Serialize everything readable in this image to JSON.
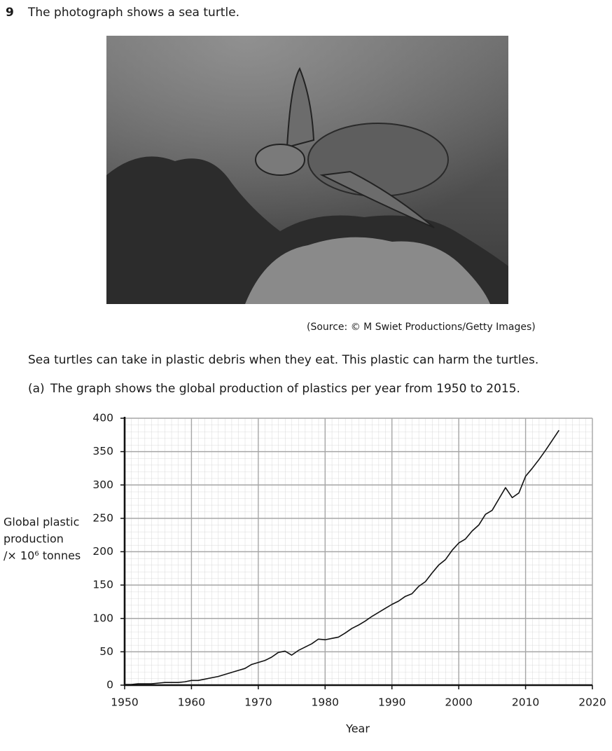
{
  "question": {
    "number": "9",
    "text": "The photograph shows a sea turtle."
  },
  "photo": {
    "source": "(Source: © M Swiet Productions/Getty Images)"
  },
  "paragraph": "Sea turtles can take in plastic debris when they eat. This plastic can harm the turtles.",
  "part": {
    "label": "(a)",
    "text": "The graph shows the global production of plastics per year from 1950 to 2015."
  },
  "chart_data": {
    "type": "line",
    "xlabel": "Year",
    "ylabel": [
      "Global plastic",
      "production",
      "/× 10⁶ tonnes"
    ],
    "x": [
      1950,
      1951,
      1952,
      1953,
      1954,
      1955,
      1956,
      1957,
      1958,
      1959,
      1960,
      1961,
      1962,
      1963,
      1964,
      1965,
      1966,
      1967,
      1968,
      1969,
      1970,
      1971,
      1972,
      1973,
      1974,
      1975,
      1976,
      1977,
      1978,
      1979,
      1980,
      1981,
      1982,
      1983,
      1984,
      1985,
      1986,
      1987,
      1988,
      1989,
      1990,
      1991,
      1992,
      1993,
      1994,
      1995,
      1996,
      1997,
      1998,
      1999,
      2000,
      2001,
      2002,
      2003,
      2004,
      2005,
      2006,
      2007,
      2008,
      2009,
      2010,
      2011,
      2012,
      2013,
      2014,
      2015
    ],
    "values": [
      1,
      1,
      2,
      2,
      2,
      3,
      4,
      4,
      4,
      5,
      7,
      7,
      9,
      11,
      13,
      16,
      19,
      22,
      25,
      31,
      34,
      37,
      42,
      49,
      51,
      45,
      52,
      57,
      62,
      69,
      68,
      70,
      72,
      78,
      85,
      90,
      96,
      103,
      109,
      115,
      121,
      126,
      133,
      137,
      148,
      155,
      168,
      180,
      188,
      202,
      213,
      219,
      231,
      240,
      256,
      262,
      279,
      296,
      281,
      288,
      313,
      325,
      338,
      352,
      367,
      382
    ],
    "color": "#111111",
    "xlim": [
      1950,
      2020
    ],
    "ylim": [
      0,
      400
    ],
    "xticks": [
      1950,
      1960,
      1970,
      1980,
      1990,
      2000,
      2010,
      2020
    ],
    "yticks": [
      0,
      50,
      100,
      150,
      200,
      250,
      300,
      350,
      400
    ],
    "grid": true,
    "minor_grid": true
  }
}
